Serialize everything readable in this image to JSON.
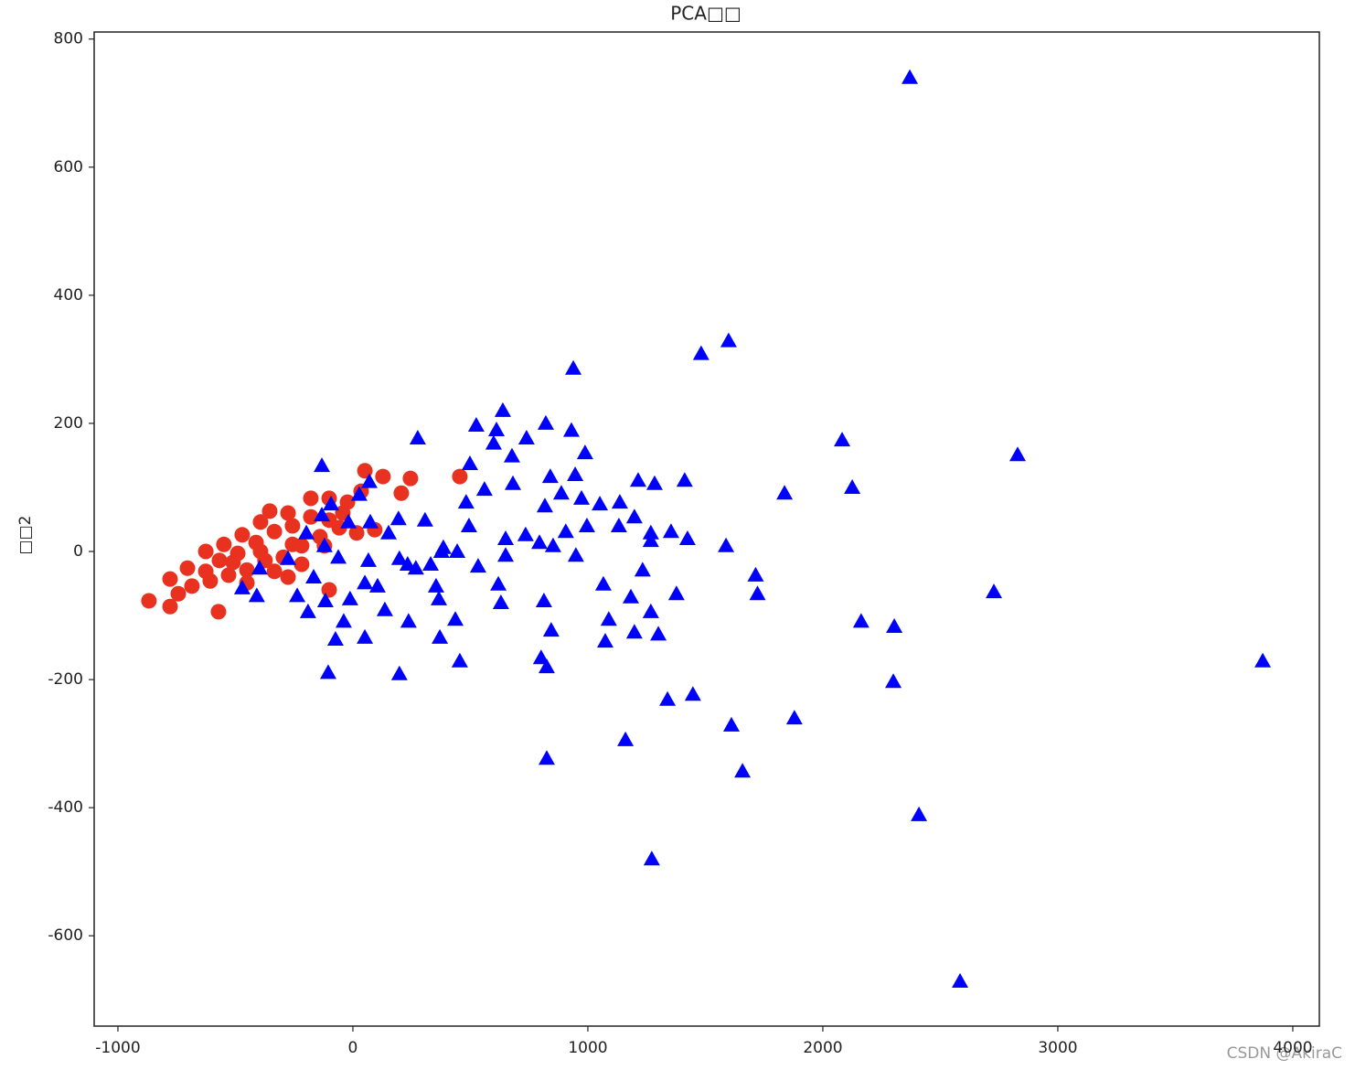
{
  "chart_data": {
    "type": "scatter",
    "title": "PCA□□",
    "y_label": "□□2",
    "watermark": "CSDN @AkiraC",
    "xlim": [
      -1101,
      4113
    ],
    "ylim": [
      -741,
      811
    ],
    "xticks": [
      -1000,
      0,
      1000,
      2000,
      3000,
      4000
    ],
    "yticks": [
      -600,
      -400,
      -200,
      0,
      200,
      400,
      600,
      800
    ],
    "series": [
      {
        "color": "#e8321f",
        "marker": "circle",
        "x": [
          -868,
          -778,
          -572,
          -778,
          -704,
          -626,
          -549,
          -471,
          -393,
          -354,
          -276,
          -179,
          -101,
          -23,
          51,
          128,
          245,
          455,
          206,
          35,
          93,
          16,
          -58,
          -140,
          -218,
          -296,
          -374,
          -451,
          -529,
          -607,
          -685,
          -743,
          -568,
          -490,
          -412,
          -334,
          -257,
          -179,
          -101,
          -218,
          -334,
          -451,
          -101,
          -43,
          -121,
          -257,
          -393,
          -510,
          -626,
          -276
        ],
        "y": [
          -77,
          -86,
          -94,
          -43,
          -26,
          0,
          11,
          26,
          46,
          63,
          60,
          83,
          83,
          77,
          126,
          117,
          114,
          117,
          91,
          94,
          34,
          29,
          37,
          23,
          9,
          -9,
          -14,
          -29,
          -37,
          -46,
          -54,
          -66,
          -14,
          -3,
          14,
          31,
          40,
          54,
          49,
          -20,
          -31,
          -49,
          -60,
          60,
          9,
          11,
          0,
          -17,
          -31,
          -40
        ]
      },
      {
        "color": "#0000ff",
        "marker": "triangle",
        "x": [
          2370,
          1599,
          1482,
          938,
          2082,
          2829,
          2125,
          1837,
          638,
          525,
          276,
          611,
          739,
          821,
          930,
          988,
          599,
          677,
          498,
          -132,
          1412,
          1284,
          1214,
          840,
          681,
          946,
          560,
          817,
          887,
          973,
          1051,
          1136,
          1198,
          1132,
          996,
          906,
          735,
          650,
          1268,
          1354,
          1424,
          1588,
          1268,
          794,
          852,
          949,
          650,
          533,
          444,
          385,
          331,
          233,
          152,
          74,
          70,
          27,
          307,
          482,
          494,
          377,
          194,
          1714,
          1722,
          2728,
          2163,
          2304,
          2300,
          3872,
          1879,
          1611,
          1658,
          1447,
          1339,
          1160,
          825,
          1272,
          2409,
          2584,
          1377,
          1268,
          1300,
          1198,
          1089,
          1074,
          1183,
          1066,
          1233,
          844,
          825,
          801,
          813,
          630,
          619,
          455,
          370,
          436,
          237,
          198,
          136,
          51,
          -39,
          -74,
          -105,
          -12,
          -117,
          -191,
          -237,
          -409,
          -471,
          -397,
          -276,
          -198,
          -132,
          -93,
          -121,
          -167,
          -62,
          -19,
          51,
          105,
          198,
          268,
          354,
          366,
          66
        ],
        "y": [
          740,
          329,
          309,
          286,
          174,
          151,
          100,
          91,
          220,
          197,
          177,
          190,
          177,
          200,
          189,
          154,
          169,
          149,
          137,
          134,
          111,
          106,
          111,
          117,
          106,
          120,
          97,
          71,
          91,
          83,
          74,
          77,
          54,
          40,
          40,
          31,
          26,
          20,
          29,
          31,
          20,
          9,
          17,
          14,
          9,
          -6,
          -6,
          -23,
          0,
          6,
          -20,
          -20,
          29,
          46,
          109,
          89,
          49,
          77,
          40,
          0,
          51,
          -37,
          -66,
          -63,
          -109,
          -117,
          -203,
          -171,
          -260,
          -271,
          -343,
          -223,
          -231,
          -294,
          -323,
          -480,
          -411,
          -671,
          -66,
          -94,
          -129,
          -126,
          -106,
          -140,
          -71,
          -51,
          -29,
          -123,
          -180,
          -166,
          -77,
          -80,
          -51,
          -171,
          -134,
          -106,
          -109,
          -191,
          -91,
          -134,
          -109,
          -137,
          -189,
          -74,
          -77,
          -94,
          -69,
          -69,
          -57,
          -26,
          -11,
          29,
          57,
          74,
          9,
          -40,
          -9,
          46,
          -49,
          -54,
          -11,
          -26,
          -54,
          -74,
          -14
        ]
      }
    ]
  }
}
